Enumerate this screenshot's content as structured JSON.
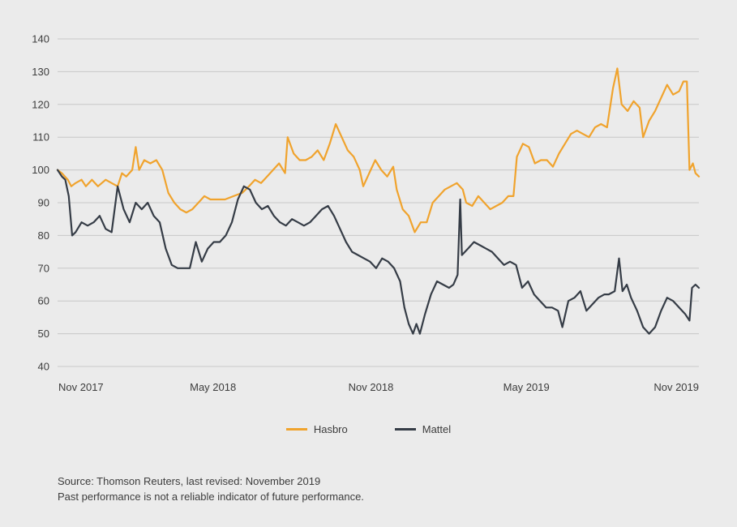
{
  "chart_data": {
    "type": "line",
    "yticks": [
      140,
      130,
      120,
      110,
      100,
      90,
      80,
      70,
      60,
      50,
      40
    ],
    "ylim": [
      40,
      140
    ],
    "xlim": [
      "2017-11-01",
      "2019-11-18"
    ],
    "xticks": [
      {
        "label": "Nov 2017",
        "date": "2017-11-01"
      },
      {
        "label": "May 2018",
        "date": "2018-05-01"
      },
      {
        "label": "Nov 2018",
        "date": "2018-11-01"
      },
      {
        "label": "May 2019",
        "date": "2019-05-01"
      },
      {
        "label": "Nov 2019",
        "date": "2019-11-01"
      }
    ],
    "grid": true,
    "legend_position": "bottom",
    "series": [
      {
        "name": "Hasbro",
        "color": "#f0a32d",
        "points": [
          [
            "2017-11-01",
            100
          ],
          [
            "2017-11-06",
            99
          ],
          [
            "2017-11-13",
            97
          ],
          [
            "2017-11-17",
            95
          ],
          [
            "2017-11-22",
            96
          ],
          [
            "2017-11-29",
            97
          ],
          [
            "2017-12-04",
            95
          ],
          [
            "2017-12-11",
            97
          ],
          [
            "2017-12-18",
            95
          ],
          [
            "2017-12-27",
            97
          ],
          [
            "2018-01-03",
            96
          ],
          [
            "2018-01-10",
            95
          ],
          [
            "2018-01-15",
            99
          ],
          [
            "2018-01-20",
            98
          ],
          [
            "2018-01-27",
            100
          ],
          [
            "2018-01-31",
            107
          ],
          [
            "2018-02-04",
            100
          ],
          [
            "2018-02-10",
            103
          ],
          [
            "2018-02-17",
            102
          ],
          [
            "2018-02-24",
            103
          ],
          [
            "2018-03-03",
            100
          ],
          [
            "2018-03-10",
            93
          ],
          [
            "2018-03-17",
            90
          ],
          [
            "2018-03-24",
            88
          ],
          [
            "2018-03-31",
            87
          ],
          [
            "2018-04-07",
            88
          ],
          [
            "2018-04-14",
            90
          ],
          [
            "2018-04-21",
            92
          ],
          [
            "2018-04-28",
            91
          ],
          [
            "2018-05-05",
            91
          ],
          [
            "2018-05-15",
            91
          ],
          [
            "2018-05-25",
            92
          ],
          [
            "2018-06-04",
            93
          ],
          [
            "2018-06-12",
            95
          ],
          [
            "2018-06-19",
            97
          ],
          [
            "2018-06-26",
            96
          ],
          [
            "2018-07-03",
            98
          ],
          [
            "2018-07-10",
            100
          ],
          [
            "2018-07-17",
            102
          ],
          [
            "2018-07-24",
            99
          ],
          [
            "2018-07-27",
            110
          ],
          [
            "2018-08-03",
            105
          ],
          [
            "2018-08-10",
            103
          ],
          [
            "2018-08-17",
            103
          ],
          [
            "2018-08-24",
            104
          ],
          [
            "2018-08-31",
            106
          ],
          [
            "2018-09-07",
            103
          ],
          [
            "2018-09-14",
            108
          ],
          [
            "2018-09-21",
            114
          ],
          [
            "2018-09-28",
            110
          ],
          [
            "2018-10-05",
            106
          ],
          [
            "2018-10-12",
            104
          ],
          [
            "2018-10-19",
            100
          ],
          [
            "2018-10-23",
            95
          ],
          [
            "2018-10-30",
            99
          ],
          [
            "2018-11-06",
            103
          ],
          [
            "2018-11-13",
            100
          ],
          [
            "2018-11-20",
            98
          ],
          [
            "2018-11-27",
            101
          ],
          [
            "2018-12-01",
            94
          ],
          [
            "2018-12-08",
            88
          ],
          [
            "2018-12-15",
            86
          ],
          [
            "2018-12-22",
            81
          ],
          [
            "2018-12-29",
            84
          ],
          [
            "2019-01-05",
            84
          ],
          [
            "2019-01-12",
            90
          ],
          [
            "2019-01-19",
            92
          ],
          [
            "2019-01-26",
            94
          ],
          [
            "2019-02-02",
            95
          ],
          [
            "2019-02-09",
            96
          ],
          [
            "2019-02-16",
            94
          ],
          [
            "2019-02-20",
            90
          ],
          [
            "2019-02-27",
            89
          ],
          [
            "2019-03-06",
            92
          ],
          [
            "2019-03-13",
            90
          ],
          [
            "2019-03-20",
            88
          ],
          [
            "2019-03-27",
            89
          ],
          [
            "2019-04-03",
            90
          ],
          [
            "2019-04-10",
            92
          ],
          [
            "2019-04-16",
            92
          ],
          [
            "2019-04-20",
            104
          ],
          [
            "2019-04-27",
            108
          ],
          [
            "2019-05-04",
            107
          ],
          [
            "2019-05-11",
            102
          ],
          [
            "2019-05-18",
            103
          ],
          [
            "2019-05-25",
            103
          ],
          [
            "2019-06-01",
            101
          ],
          [
            "2019-06-08",
            105
          ],
          [
            "2019-06-15",
            108
          ],
          [
            "2019-06-22",
            111
          ],
          [
            "2019-06-29",
            112
          ],
          [
            "2019-07-06",
            111
          ],
          [
            "2019-07-13",
            110
          ],
          [
            "2019-07-20",
            113
          ],
          [
            "2019-07-27",
            114
          ],
          [
            "2019-08-03",
            113
          ],
          [
            "2019-08-10",
            125
          ],
          [
            "2019-08-15",
            131
          ],
          [
            "2019-08-20",
            120
          ],
          [
            "2019-08-27",
            118
          ],
          [
            "2019-09-03",
            121
          ],
          [
            "2019-09-10",
            119
          ],
          [
            "2019-09-14",
            110
          ],
          [
            "2019-09-21",
            115
          ],
          [
            "2019-09-28",
            118
          ],
          [
            "2019-10-05",
            122
          ],
          [
            "2019-10-12",
            126
          ],
          [
            "2019-10-19",
            123
          ],
          [
            "2019-10-26",
            124
          ],
          [
            "2019-10-31",
            127
          ],
          [
            "2019-11-04",
            127
          ],
          [
            "2019-11-07",
            100
          ],
          [
            "2019-11-11",
            102
          ],
          [
            "2019-11-14",
            99
          ],
          [
            "2019-11-18",
            98
          ]
        ]
      },
      {
        "name": "Mattel",
        "color": "#353c46",
        "points": [
          [
            "2017-11-01",
            100
          ],
          [
            "2017-11-06",
            98
          ],
          [
            "2017-11-10",
            97
          ],
          [
            "2017-11-14",
            92
          ],
          [
            "2017-11-18",
            80
          ],
          [
            "2017-11-22",
            81
          ],
          [
            "2017-11-29",
            84
          ],
          [
            "2017-12-06",
            83
          ],
          [
            "2017-12-13",
            84
          ],
          [
            "2017-12-20",
            86
          ],
          [
            "2017-12-27",
            82
          ],
          [
            "2018-01-03",
            81
          ],
          [
            "2018-01-10",
            95
          ],
          [
            "2018-01-17",
            88
          ],
          [
            "2018-01-24",
            84
          ],
          [
            "2018-01-31",
            90
          ],
          [
            "2018-02-07",
            88
          ],
          [
            "2018-02-14",
            90
          ],
          [
            "2018-02-21",
            86
          ],
          [
            "2018-02-28",
            84
          ],
          [
            "2018-03-07",
            76
          ],
          [
            "2018-03-14",
            71
          ],
          [
            "2018-03-21",
            70
          ],
          [
            "2018-03-28",
            70
          ],
          [
            "2018-04-04",
            70
          ],
          [
            "2018-04-11",
            78
          ],
          [
            "2018-04-18",
            72
          ],
          [
            "2018-04-25",
            76
          ],
          [
            "2018-05-02",
            78
          ],
          [
            "2018-05-09",
            78
          ],
          [
            "2018-05-16",
            80
          ],
          [
            "2018-05-23",
            84
          ],
          [
            "2018-05-30",
            91
          ],
          [
            "2018-06-06",
            95
          ],
          [
            "2018-06-13",
            94
          ],
          [
            "2018-06-20",
            90
          ],
          [
            "2018-06-27",
            88
          ],
          [
            "2018-07-04",
            89
          ],
          [
            "2018-07-11",
            86
          ],
          [
            "2018-07-18",
            84
          ],
          [
            "2018-07-25",
            83
          ],
          [
            "2018-08-01",
            85
          ],
          [
            "2018-08-08",
            84
          ],
          [
            "2018-08-15",
            83
          ],
          [
            "2018-08-22",
            84
          ],
          [
            "2018-08-29",
            86
          ],
          [
            "2018-09-05",
            88
          ],
          [
            "2018-09-12",
            89
          ],
          [
            "2018-09-19",
            86
          ],
          [
            "2018-09-26",
            82
          ],
          [
            "2018-10-03",
            78
          ],
          [
            "2018-10-10",
            75
          ],
          [
            "2018-10-17",
            74
          ],
          [
            "2018-10-24",
            73
          ],
          [
            "2018-10-31",
            72
          ],
          [
            "2018-11-07",
            70
          ],
          [
            "2018-11-14",
            73
          ],
          [
            "2018-11-21",
            72
          ],
          [
            "2018-11-28",
            70
          ],
          [
            "2018-12-05",
            66
          ],
          [
            "2018-12-10",
            58
          ],
          [
            "2018-12-15",
            53
          ],
          [
            "2018-12-20",
            50
          ],
          [
            "2018-12-24",
            53
          ],
          [
            "2018-12-28",
            50
          ],
          [
            "2019-01-03",
            56
          ],
          [
            "2019-01-10",
            62
          ],
          [
            "2019-01-17",
            66
          ],
          [
            "2019-01-24",
            65
          ],
          [
            "2019-01-31",
            64
          ],
          [
            "2019-02-05",
            65
          ],
          [
            "2019-02-10",
            68
          ],
          [
            "2019-02-13",
            91
          ],
          [
            "2019-02-15",
            74
          ],
          [
            "2019-02-22",
            76
          ],
          [
            "2019-03-01",
            78
          ],
          [
            "2019-03-08",
            77
          ],
          [
            "2019-03-15",
            76
          ],
          [
            "2019-03-22",
            75
          ],
          [
            "2019-03-29",
            73
          ],
          [
            "2019-04-05",
            71
          ],
          [
            "2019-04-12",
            72
          ],
          [
            "2019-04-19",
            71
          ],
          [
            "2019-04-26",
            64
          ],
          [
            "2019-05-03",
            66
          ],
          [
            "2019-05-10",
            62
          ],
          [
            "2019-05-17",
            60
          ],
          [
            "2019-05-24",
            58
          ],
          [
            "2019-05-31",
            58
          ],
          [
            "2019-06-07",
            57
          ],
          [
            "2019-06-12",
            52
          ],
          [
            "2019-06-19",
            60
          ],
          [
            "2019-06-26",
            61
          ],
          [
            "2019-07-03",
            63
          ],
          [
            "2019-07-10",
            57
          ],
          [
            "2019-07-17",
            59
          ],
          [
            "2019-07-24",
            61
          ],
          [
            "2019-07-31",
            62
          ],
          [
            "2019-08-05",
            62
          ],
          [
            "2019-08-12",
            63
          ],
          [
            "2019-08-17",
            73
          ],
          [
            "2019-08-21",
            63
          ],
          [
            "2019-08-26",
            65
          ],
          [
            "2019-08-31",
            61
          ],
          [
            "2019-09-07",
            57
          ],
          [
            "2019-09-14",
            52
          ],
          [
            "2019-09-21",
            50
          ],
          [
            "2019-09-28",
            52
          ],
          [
            "2019-10-05",
            57
          ],
          [
            "2019-10-12",
            61
          ],
          [
            "2019-10-19",
            60
          ],
          [
            "2019-10-26",
            58
          ],
          [
            "2019-11-02",
            56
          ],
          [
            "2019-11-07",
            54
          ],
          [
            "2019-11-10",
            64
          ],
          [
            "2019-11-14",
            65
          ],
          [
            "2019-11-18",
            64
          ]
        ]
      }
    ]
  },
  "footer": {
    "source_line": "Source: Thomson Reuters, last revised: November 2019",
    "disclaimer_line": "Past performance is not a reliable indicator of future performance."
  }
}
